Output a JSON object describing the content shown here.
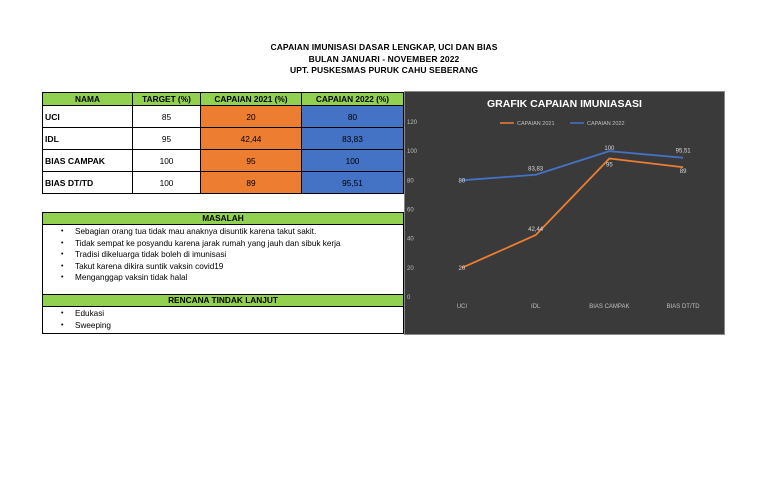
{
  "header": {
    "line1": "CAPAIAN IMUNISASI DASAR LENGKAP, UCI DAN BIAS",
    "line2": "BULAN JANUARI - NOVEMBER 2022",
    "line3": "UPT. PUSKESMAS PURUK CAHU SEBERANG"
  },
  "table": {
    "headers": [
      "NAMA",
      "TARGET (%)",
      "CAPAIAN 2021 (%)",
      "CAPAIAN 2022 (%)"
    ],
    "rows": [
      {
        "nama": "UCI",
        "target": "85",
        "c2021": "20",
        "c2022": "80"
      },
      {
        "nama": "IDL",
        "target": "95",
        "c2021": "42,44",
        "c2022": "83,83"
      },
      {
        "nama": "BIAS CAMPAK",
        "target": "100",
        "c2021": "95",
        "c2022": "100"
      },
      {
        "nama": "BIAS DT/TD",
        "target": "100",
        "c2021": "89",
        "c2022": "95,51"
      }
    ]
  },
  "masalah": {
    "title": "MASALAH",
    "items": [
      "Sebagian orang tua tidak mau anaknya disuntik karena takut sakit.",
      "Tidak sempat ke posyandu karena jarak rumah yang jauh dan sibuk kerja",
      "Tradisi dikeluarga tidak boleh di imunisasi",
      "Takut karena dikira suntik vaksin covid19",
      "Menganggap vaksin tidak halal"
    ]
  },
  "rencana": {
    "title": "RENCANA TINDAK LANJUT",
    "items": [
      "Edukasi",
      "Sweeping"
    ]
  },
  "colors": {
    "s2021": "#ed7d31",
    "s2022": "#4472c4",
    "chart_bg": "#3a3a3a",
    "green_header": "#92d050"
  },
  "chart_data": {
    "type": "line",
    "title": "GRAFIK CAPAIAN IMUNIASASI",
    "categories": [
      "UCI",
      "IDL",
      "BIAS CAMPAK",
      "BIAS DT/TD"
    ],
    "series": [
      {
        "name": "CAPAIAN 2021",
        "values": [
          20,
          42.44,
          95,
          89
        ],
        "labels": [
          "20",
          "42,44",
          "95",
          "89"
        ],
        "color": "#ed7d31"
      },
      {
        "name": "CAPAIAN 2022",
        "values": [
          80,
          83.83,
          100,
          95.51
        ],
        "labels": [
          "80",
          "83,83",
          "100",
          "95,51"
        ],
        "color": "#4472c4"
      }
    ],
    "yticks": [
      0,
      20,
      40,
      60,
      80,
      100,
      120
    ],
    "ylim": [
      0,
      120
    ],
    "legend": "top",
    "grid": false
  }
}
